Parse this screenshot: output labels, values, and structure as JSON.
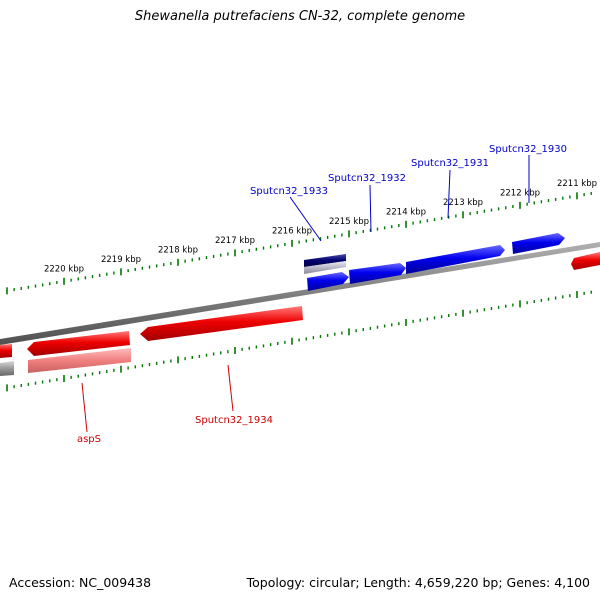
{
  "title": "Shewanella putrefaciens CN-32, complete genome",
  "footer": {
    "accession": "Accession: NC_009438",
    "topology": "Topology: circular; Length: 4,659,220 bp; Genes: 4,100"
  },
  "scale_labels": [
    "2211 kbp",
    "2212 kbp",
    "2213 kbp",
    "2214 kbp",
    "2215 kbp",
    "2216 kbp",
    "2217 kbp",
    "2218 kbp",
    "2219 kbp",
    "2220 kbp"
  ],
  "gene_labels": {
    "forward": [
      "Sputcn32_1930",
      "Sputcn32_1931",
      "Sputcn32_1932",
      "Sputcn32_1933"
    ],
    "reverse": [
      "aspS",
      "Sputcn32_1934"
    ]
  },
  "colors": {
    "forward_gene": "#0000ee",
    "forward_label": "#0000cc",
    "reverse_gene": "#ee0000",
    "reverse_label": "#cc0000",
    "backbone": "#808080",
    "scale_ticks": "#007700"
  }
}
